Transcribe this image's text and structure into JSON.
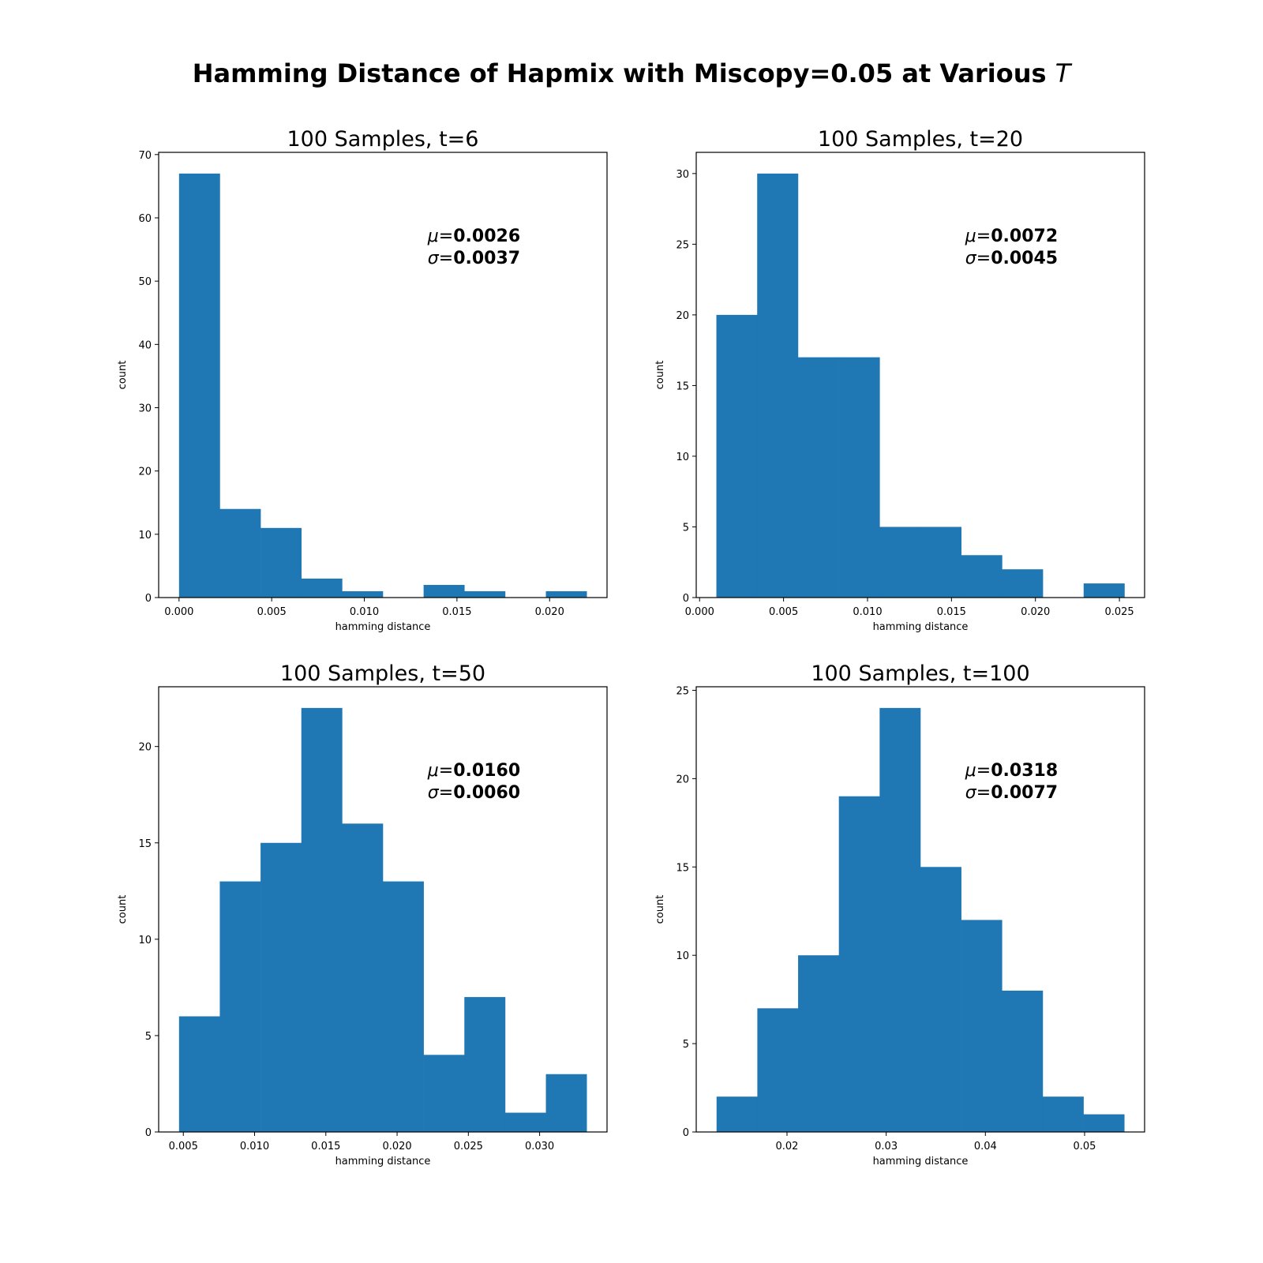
{
  "figure": {
    "title_prefix": "Hamming Distance of Hapmix with Miscopy=0.05 at Various ",
    "title_symbol": "T"
  },
  "colors": {
    "bar": "#1f77b4",
    "axis": "#000000"
  },
  "chart_data": [
    {
      "type": "bar",
      "title": "100 Samples, t=6",
      "xlabel": "hamming distance",
      "ylabel": "count",
      "bin_edges": [
        0.0,
        0.0022,
        0.0044,
        0.0066,
        0.0088,
        0.011,
        0.0132,
        0.0154,
        0.0176,
        0.0198,
        0.022
      ],
      "values": [
        67,
        14,
        11,
        3,
        1,
        0,
        2,
        1,
        0,
        1
      ],
      "xlim": [
        -0.0011,
        0.0231
      ],
      "ylim": [
        0,
        70.35
      ],
      "xticks": [
        0.0,
        0.005,
        0.01,
        0.015,
        0.02
      ],
      "xtick_labels": [
        "0.000",
        "0.005",
        "0.010",
        "0.015",
        "0.020"
      ],
      "yticks": [
        0,
        10,
        20,
        30,
        40,
        50,
        60,
        70
      ],
      "ytick_labels": [
        "0",
        "10",
        "20",
        "30",
        "40",
        "50",
        "60",
        "70"
      ],
      "stats": {
        "mu_label": "μ",
        "mu_value": "0.0026",
        "sigma_label": "σ",
        "sigma_value": "0.0037",
        "eq": "="
      }
    },
    {
      "type": "bar",
      "title": "100 Samples, t=20",
      "xlabel": "hamming distance",
      "ylabel": "count",
      "bin_edges": [
        0.001,
        0.00343,
        0.00586,
        0.00829,
        0.01072,
        0.01315,
        0.01558,
        0.01801,
        0.02044,
        0.02287,
        0.0253
      ],
      "values": [
        20,
        30,
        17,
        17,
        5,
        5,
        3,
        2,
        0,
        1
      ],
      "xlim": [
        -0.0002,
        0.0265
      ],
      "ylim": [
        0,
        31.5
      ],
      "xticks": [
        0.0,
        0.005,
        0.01,
        0.015,
        0.02,
        0.025
      ],
      "xtick_labels": [
        "0.000",
        "0.005",
        "0.010",
        "0.015",
        "0.020",
        "0.025"
      ],
      "yticks": [
        0,
        5,
        10,
        15,
        20,
        25,
        30
      ],
      "ytick_labels": [
        "0",
        "5",
        "10",
        "15",
        "20",
        "25",
        "30"
      ],
      "stats": {
        "mu_label": "μ",
        "mu_value": "0.0072",
        "sigma_label": "σ",
        "sigma_value": "0.0045",
        "eq": "="
      }
    },
    {
      "type": "bar",
      "title": "100 Samples, t=50",
      "xlabel": "hamming distance",
      "ylabel": "count",
      "bin_edges": [
        0.0047,
        0.00756,
        0.01042,
        0.01328,
        0.01614,
        0.019,
        0.02186,
        0.02472,
        0.02758,
        0.03044,
        0.0333
      ],
      "values": [
        6,
        13,
        15,
        22,
        16,
        13,
        4,
        7,
        1,
        3
      ],
      "xlim": [
        0.00327,
        0.03473
      ],
      "ylim": [
        0,
        23.1
      ],
      "xticks": [
        0.005,
        0.01,
        0.015,
        0.02,
        0.025,
        0.03
      ],
      "xtick_labels": [
        "0.005",
        "0.010",
        "0.015",
        "0.020",
        "0.025",
        "0.030"
      ],
      "yticks": [
        0,
        5,
        10,
        15,
        20
      ],
      "ytick_labels": [
        "0",
        "5",
        "10",
        "15",
        "20"
      ],
      "stats": {
        "mu_label": "μ",
        "mu_value": "0.0160",
        "sigma_label": "σ",
        "sigma_value": "0.0060",
        "eq": "="
      }
    },
    {
      "type": "bar",
      "title": "100 Samples, t=100",
      "xlabel": "hamming distance",
      "ylabel": "count",
      "bin_edges": [
        0.0129,
        0.01701,
        0.02112,
        0.02523,
        0.02934,
        0.03345,
        0.03756,
        0.04167,
        0.04578,
        0.04989,
        0.054
      ],
      "values": [
        2,
        7,
        10,
        19,
        24,
        15,
        12,
        8,
        2,
        1
      ],
      "xlim": [
        0.01085,
        0.05605
      ],
      "ylim": [
        0,
        25.2
      ],
      "xticks": [
        0.02,
        0.03,
        0.04,
        0.05
      ],
      "xtick_labels": [
        "0.02",
        "0.03",
        "0.04",
        "0.05"
      ],
      "yticks": [
        0,
        5,
        10,
        15,
        20,
        25
      ],
      "ytick_labels": [
        "0",
        "5",
        "10",
        "15",
        "20",
        "25"
      ],
      "stats": {
        "mu_label": "μ",
        "mu_value": "0.0318",
        "sigma_label": "σ",
        "sigma_value": "0.0077",
        "eq": "="
      }
    }
  ]
}
